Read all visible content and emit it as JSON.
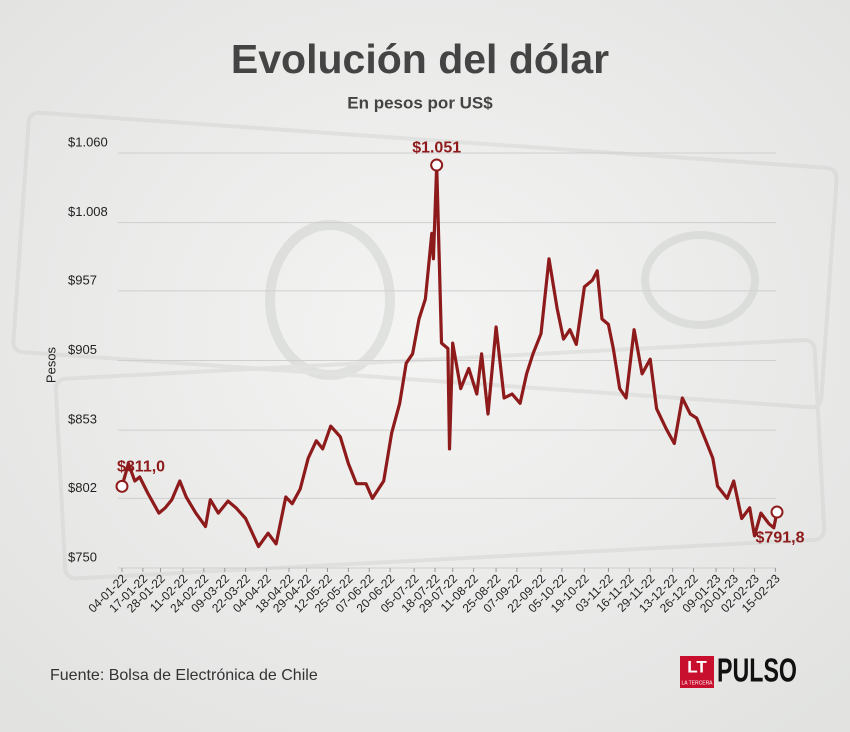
{
  "chart_data": {
    "type": "line",
    "title": "Evolución del dólar",
    "subtitle": "En pesos por US$",
    "y_label": "Pesos",
    "source": "Fuente: Bolsa de Electrónica de Chile",
    "logo": {
      "mark": "LT",
      "sub": "LA TERCERA",
      "name": "PULSO"
    },
    "color": "#8e1b1b",
    "grid": true,
    "xlim": [
      "04-01-22",
      "16-02-23"
    ],
    "ylim": [
      750,
      1060
    ],
    "yticks": [
      {
        "value": 750,
        "label": "$750"
      },
      {
        "value": 802,
        "label": "$802"
      },
      {
        "value": 853,
        "label": "$853"
      },
      {
        "value": 905,
        "label": "$905"
      },
      {
        "value": 957,
        "label": "$957"
      },
      {
        "value": 1008,
        "label": "$1.008"
      },
      {
        "value": 1060,
        "label": "$1.060"
      }
    ],
    "xticks": [
      "04-01-22",
      "17-01-22",
      "28-01-22",
      "11-02-22",
      "24-02-22",
      "09-03-22",
      "22-03-22",
      "04-04-22",
      "18-04-22",
      "29-04-22",
      "12-05-22",
      "25-05-22",
      "07-06-22",
      "20-06-22",
      "05-07-22",
      "18-07-22",
      "29-07-22",
      "11-08-22",
      "25-08-22",
      "07-09-22",
      "22-09-22",
      "05-10-22",
      "19-10-22",
      "03-11-22",
      "16-11-22",
      "29-11-22",
      "13-12-22",
      "26-12-22",
      "09-01-23",
      "20-01-23",
      "02-02-23",
      "15-02-23"
    ],
    "x": [
      "04-01-22",
      "08-01-22",
      "12-01-22",
      "15-01-22",
      "20-01-22",
      "27-01-22",
      "31-01-22",
      "04-02-22",
      "09-02-22",
      "13-02-22",
      "19-02-22",
      "25-02-22",
      "28-02-22",
      "05-03-22",
      "11-03-22",
      "16-03-22",
      "22-03-22",
      "30-03-22",
      "05-04-22",
      "10-04-22",
      "16-04-22",
      "20-04-22",
      "25-04-22",
      "30-04-22",
      "05-05-22",
      "09-05-22",
      "14-05-22",
      "20-05-22",
      "25-05-22",
      "30-05-22",
      "05-06-22",
      "09-06-22",
      "16-06-22",
      "21-06-22",
      "26-06-22",
      "30-06-22",
      "04-07-22",
      "08-07-22",
      "12-07-22",
      "16-07-22",
      "17-07-22",
      "19-07-22",
      "22-07-22",
      "26-07-22",
      "27-07-22",
      "29-07-22",
      "03-08-22",
      "08-08-22",
      "13-08-22",
      "16-08-22",
      "20-08-22",
      "25-08-22",
      "30-08-22",
      "04-09-22",
      "09-09-22",
      "13-09-22",
      "17-09-22",
      "22-09-22",
      "27-09-22",
      "02-10-22",
      "06-10-22",
      "10-10-22",
      "14-10-22",
      "19-10-22",
      "24-10-22",
      "27-10-22",
      "30-10-22",
      "03-11-22",
      "06-11-22",
      "10-11-22",
      "14-11-22",
      "19-11-22",
      "24-11-22",
      "29-11-22",
      "03-12-22",
      "09-12-22",
      "14-12-22",
      "19-12-22",
      "24-12-22",
      "28-12-22",
      "02-01-23",
      "07-01-23",
      "10-01-23",
      "16-01-23",
      "20-01-23",
      "25-01-23",
      "30-01-23",
      "02-02-23",
      "06-02-23",
      "11-02-23",
      "14-02-23",
      "16-02-23"
    ],
    "values": [
      811,
      828,
      815,
      818,
      806,
      791,
      795,
      801,
      815,
      803,
      791,
      781,
      801,
      791,
      800,
      795,
      787,
      766,
      776,
      768,
      803,
      798,
      809,
      832,
      845,
      839,
      856,
      848,
      828,
      813,
      813,
      802,
      815,
      851,
      873,
      903,
      910,
      936,
      951,
      1000,
      981,
      1051,
      918,
      914,
      839,
      918,
      884,
      899,
      880,
      910,
      865,
      930,
      877,
      880,
      873,
      895,
      910,
      925,
      981,
      944,
      921,
      928,
      917,
      960,
      965,
      972,
      936,
      932,
      914,
      884,
      877,
      928,
      895,
      906,
      869,
      854,
      843,
      877,
      865,
      862,
      847,
      832,
      811,
      802,
      815,
      787,
      795,
      774,
      791,
      783,
      780,
      791.8
    ],
    "value_labels": [
      "$811,0",
      null,
      null,
      null,
      null,
      null,
      null,
      null,
      null,
      null,
      null,
      null,
      null,
      null,
      null,
      null,
      null,
      null,
      null,
      null,
      null,
      null,
      null,
      null,
      null,
      null,
      null,
      null,
      null,
      null,
      null,
      null,
      null,
      null,
      null,
      null,
      null,
      null,
      null,
      null,
      null,
      "$1.051",
      null,
      null,
      null,
      null,
      null,
      null,
      null,
      null,
      null,
      null,
      null,
      null,
      null,
      null,
      null,
      null,
      null,
      null,
      null,
      null,
      null,
      null,
      null,
      null,
      null,
      null,
      null,
      null,
      null,
      null,
      null,
      null,
      null,
      null,
      null,
      null,
      null,
      null,
      null,
      null,
      null,
      null,
      null,
      null,
      null,
      null,
      null,
      null,
      null,
      "$791,8"
    ]
  }
}
